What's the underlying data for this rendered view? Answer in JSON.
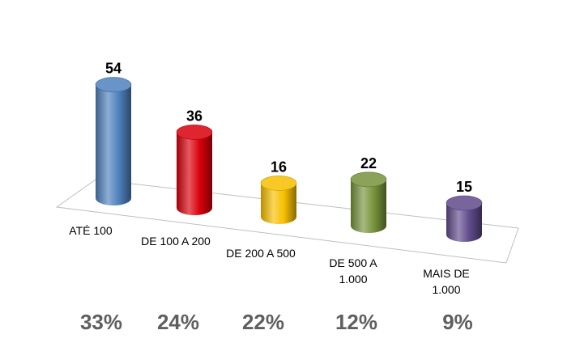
{
  "chart_data": {
    "type": "bar",
    "title": "",
    "xlabel": "",
    "ylabel": "",
    "categories": [
      [
        "ATÉ 100"
      ],
      [
        "DE 100 A 200"
      ],
      [
        "DE 200 A 500"
      ],
      [
        "DE 500 A",
        "1.000"
      ],
      [
        "MAIS DE",
        "1.000"
      ]
    ],
    "values": [
      54,
      36,
      16,
      22,
      15
    ],
    "data_labels": [
      "54",
      "36",
      "16",
      "22",
      "15"
    ],
    "percentages": [
      "33%",
      "24%",
      "22%",
      "12%",
      "9%"
    ],
    "colors": [
      "#4f81bd",
      "#d9000b",
      "#f7c000",
      "#77933c",
      "#604a8b"
    ],
    "style": "3d-cylinder",
    "grid": false,
    "legend": "none"
  }
}
